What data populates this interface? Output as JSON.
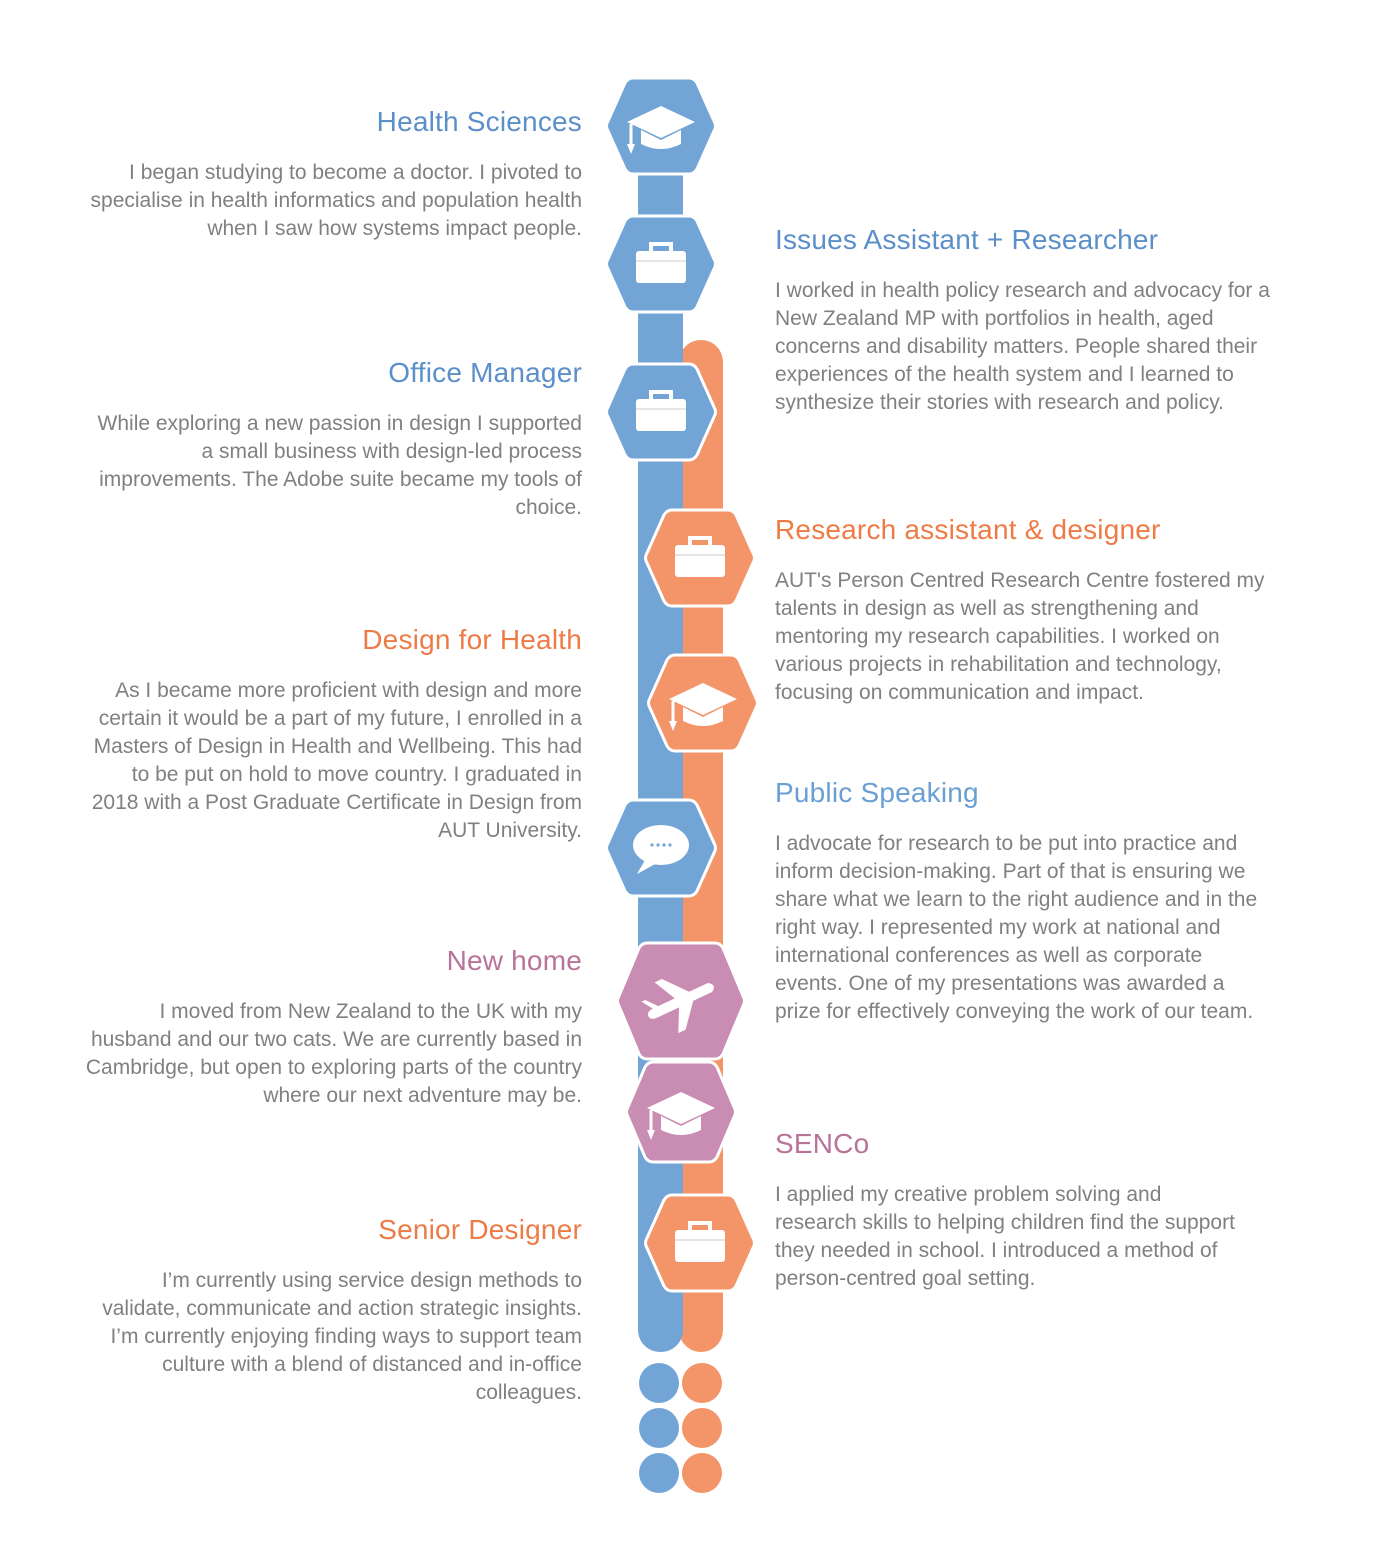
{
  "colors": {
    "blue": "#72a5d6",
    "orange": "#f39469",
    "purple": "#c98cb2",
    "text_blue": "#5b8fc9",
    "text_orange": "#ee7b46",
    "text_purple": "#b87398",
    "body_text": "#808080"
  },
  "left_entries": [
    {
      "title": "Health Sciences",
      "text": "I began studying to become a doctor. I pivoted to specialise in health informatics and population health when I saw how systems impact people."
    },
    {
      "title": "Office Manager",
      "text": "While exploring a new passion in design I supported a small business with design-led process improvements. The Adobe suite became my tools of choice."
    },
    {
      "title": "Design for Health",
      "text": "As I became more proficient with design and more certain it would be a part of my future, I enrolled in a Masters of Design in Health and Wellbeing. This had to be put on hold to move country. I graduated in 2018 with a Post Graduate Certificate in Design from AUT University."
    },
    {
      "title": "New home",
      "text": "I moved from New Zealand to the UK with my husband and our two cats. We are currently based in Cambridge, but open to exploring parts of the country where our next adventure may be."
    },
    {
      "title": "Senior Designer",
      "text": "I’m currently using service design methods to validate, communicate and action strategic insights.  I’m currently enjoying finding ways to support  team culture with a blend of distanced and in-office colleagues."
    }
  ],
  "right_entries": [
    {
      "title": "Issues Assistant + Researcher",
      "text": "I worked in health policy research and advocacy for a New Zealand MP with portfolios in health, aged concerns and disability matters. People shared their experiences of the health system and I learned to synthesize their stories with research and policy."
    },
    {
      "title": "Research assistant & designer",
      "text": "AUT's Person Centred Research Centre fostered my talents in design as well as strengthening and mentoring my research capabilities. I worked on various projects in rehabilitation and technology, focusing on communication and impact."
    },
    {
      "title": "Public Speaking",
      "text": "I advocate for research to be put into practice and inform decision-making. Part of that is ensuring we share what we learn to the right audience and in the right way. I represented my work at national and international conferences as well as corporate events. One of my presentations was awarded a prize for effectively conveying the work of our team."
    },
    {
      "title": "SENCo",
      "text": "I applied my creative problem solving and research skills to helping children find the support they needed in school. I introduced a method of person-centred goal setting."
    }
  ],
  "timeline_nodes": [
    {
      "icon": "graduation-cap-icon",
      "color": "blue"
    },
    {
      "icon": "briefcase-icon",
      "color": "blue"
    },
    {
      "icon": "briefcase-icon",
      "color": "blue"
    },
    {
      "icon": "briefcase-icon",
      "color": "orange"
    },
    {
      "icon": "graduation-cap-icon",
      "color": "orange"
    },
    {
      "icon": "speech-bubble-icon",
      "color": "blue"
    },
    {
      "icon": "airplane-icon",
      "color": "purple"
    },
    {
      "icon": "graduation-cap-icon",
      "color": "purple"
    },
    {
      "icon": "briefcase-icon",
      "color": "orange"
    }
  ]
}
